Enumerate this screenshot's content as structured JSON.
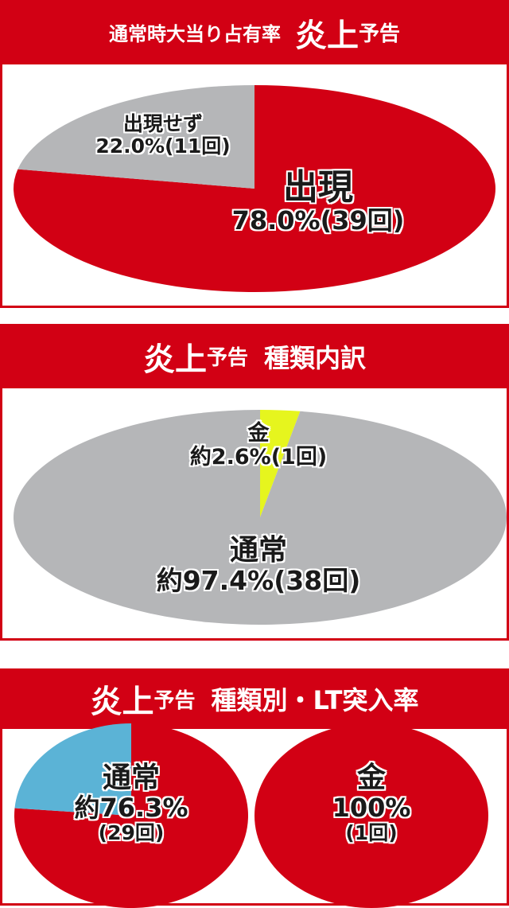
{
  "sections": [
    {
      "title_parts": [
        "通常時大当り占有率",
        "炎上",
        "予告"
      ]
    },
    {
      "title_parts": [
        "炎上",
        "予告",
        "種類内訳"
      ]
    },
    {
      "title_parts": [
        "炎上",
        "予告",
        "種類別・LT突入率"
      ]
    }
  ],
  "chart_data": [
    {
      "type": "pie",
      "title": "通常時大当り占有率 炎上予告",
      "slices": [
        {
          "name": "出現",
          "value": 78.0,
          "count_label": "78.0%(39回)",
          "color": "#d20014"
        },
        {
          "name": "出現せず",
          "value": 22.0,
          "count_label": "22.0%(11回)",
          "color": "#b5b6b8"
        }
      ]
    },
    {
      "type": "pie",
      "title": "炎上予告 種類内訳",
      "slices": [
        {
          "name": "金",
          "value": 2.6,
          "count_label": "約2.6%(1回)",
          "color": "#e6f51e"
        },
        {
          "name": "通常",
          "value": 97.4,
          "count_label": "約97.4%(38回)",
          "color": "#b5b6b8"
        }
      ]
    },
    {
      "type": "pie",
      "title": "炎上予告 種類別・LT突入率",
      "name": "通常",
      "slices": [
        {
          "value": 76.3,
          "color": "#d20014"
        },
        {
          "value": 23.7,
          "color": "#5bb3d6"
        }
      ],
      "pct_label": "約76.3%",
      "count_label": "(29回)"
    },
    {
      "type": "pie",
      "title": "炎上予告 種類別・LT突入率",
      "name": "金",
      "slices": [
        {
          "value": 100,
          "color": "#d20014"
        }
      ],
      "pct_label": "100%",
      "count_label": "(1回)"
    }
  ]
}
